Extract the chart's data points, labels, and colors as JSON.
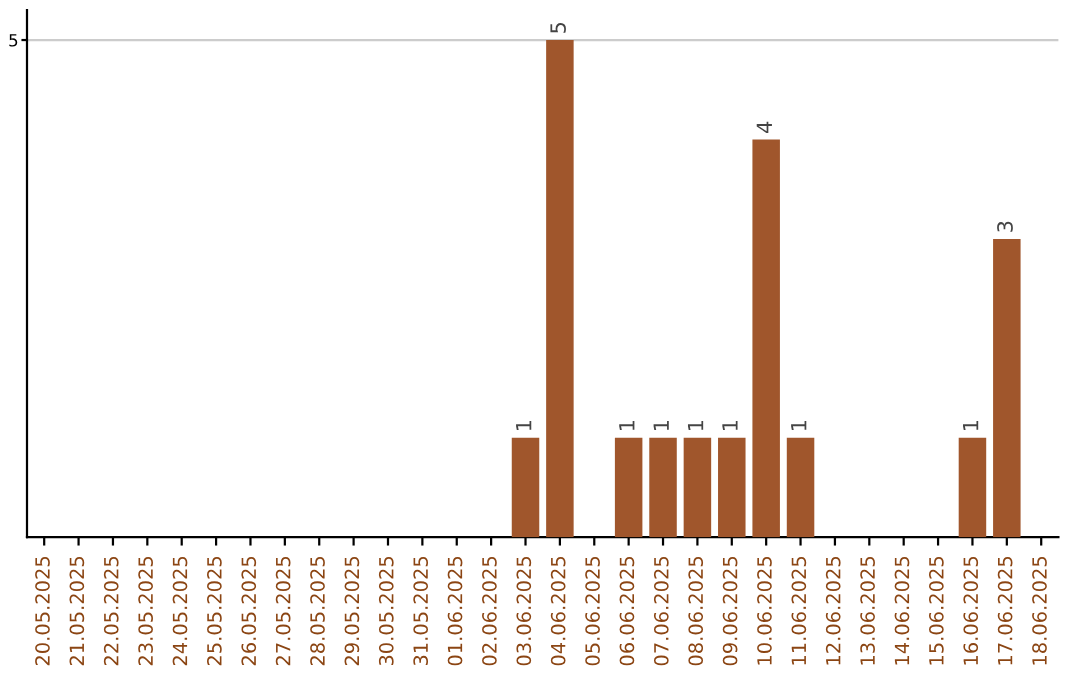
{
  "chart_data": {
    "type": "bar",
    "categories": [
      "20.05.2025",
      "21.05.2025",
      "22.05.2025",
      "23.05.2025",
      "24.05.2025",
      "25.05.2025",
      "26.05.2025",
      "27.05.2025",
      "28.05.2025",
      "29.05.2025",
      "30.05.2025",
      "31.05.2025",
      "01.06.2025",
      "02.06.2025",
      "03.06.2025",
      "04.06.2025",
      "05.06.2025",
      "06.06.2025",
      "07.06.2025",
      "08.06.2025",
      "09.06.2025",
      "10.06.2025",
      "11.06.2025",
      "12.06.2025",
      "13.06.2025",
      "14.06.2025",
      "15.06.2025",
      "16.06.2025",
      "17.06.2025",
      "18.06.2025"
    ],
    "values": [
      null,
      null,
      null,
      null,
      null,
      null,
      null,
      null,
      null,
      null,
      null,
      null,
      null,
      null,
      1,
      5,
      null,
      1,
      1,
      1,
      1,
      4,
      1,
      null,
      null,
      null,
      null,
      1,
      3,
      null
    ],
    "data_labels": true,
    "color": "#a0562c",
    "ylim": [
      0,
      5.3
    ],
    "yticks": [
      5
    ],
    "grid": "y"
  }
}
